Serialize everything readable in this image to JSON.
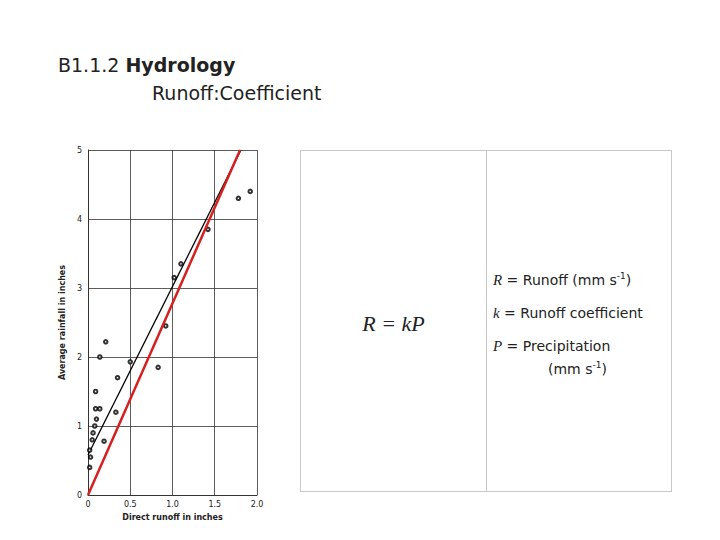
{
  "header": {
    "code": "B1.1.2",
    "title": "Hydrology",
    "subtitle": "Runoff:Coefficient"
  },
  "chart_data": {
    "type": "scatter",
    "x_label": "Direct runoff in inches",
    "y_label": "Average rainfall in inches",
    "xlim": [
      0,
      2
    ],
    "xticks": [
      0,
      0.5,
      {
        "value": 1,
        "label": "1.0"
      },
      1.5,
      {
        "value": 2,
        "label": "2.0"
      }
    ],
    "ylim": [
      0,
      5
    ],
    "yticks": [
      0,
      1,
      2,
      3,
      4,
      5
    ],
    "grid": true,
    "series": [
      {
        "type": "scatter",
        "color": "#000000",
        "marker": "open_circle",
        "x": [
          0.02,
          0.03,
          0.02,
          0.05,
          0.06,
          0.08,
          0.1,
          0.09,
          0.14,
          0.09,
          0.14,
          0.21,
          0.19,
          0.35,
          0.33,
          0.5,
          0.83,
          0.92,
          1.02,
          1.1,
          1.42,
          1.78,
          1.92
        ],
        "values": [
          0.4,
          0.55,
          0.65,
          0.8,
          0.9,
          1.0,
          1.1,
          1.25,
          1.25,
          1.5,
          2.0,
          2.22,
          0.78,
          1.7,
          1.2,
          1.93,
          1.85,
          2.45,
          3.15,
          3.35,
          3.85,
          4.3,
          4.4
        ]
      },
      {
        "type": "line",
        "color": "#000000",
        "line_style": "solid",
        "x": [
          0,
          1.81
        ],
        "values": [
          0.58,
          5
        ]
      },
      {
        "type": "line",
        "color": "#d42020",
        "line_style": "solid",
        "x": [
          0,
          1.8
        ],
        "values": [
          0,
          5
        ]
      }
    ]
  },
  "table": {
    "equation": "R = kP",
    "definitions": [
      {
        "symbol": "R",
        "lines": [
          [
            {
              "text": " = Runoff (mm s"
            },
            {
              "sup": "-1"
            },
            {
              "text": ")"
            }
          ]
        ]
      },
      {
        "symbol": "k",
        "lines": [
          [
            {
              "text": " = Runoff coefficient"
            }
          ]
        ]
      },
      {
        "symbol": "P",
        "lines": [
          [
            {
              "text": " = Precipitation"
            }
          ],
          [
            {
              "text": "(mm s"
            },
            {
              "sup": "-1"
            },
            {
              "text": ")"
            }
          ]
        ]
      }
    ]
  }
}
